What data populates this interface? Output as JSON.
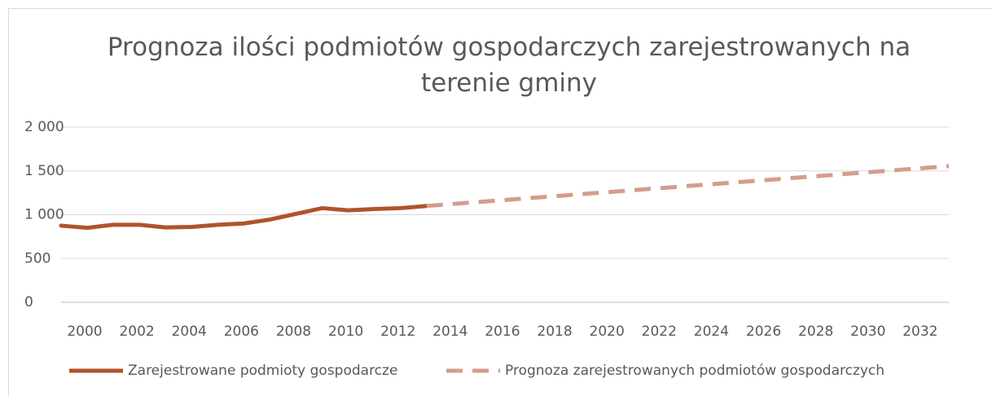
{
  "chart_data": {
    "type": "line",
    "title": "Prognoza ilości podmiotów gospodarczych zarejestrowanych na terenie gminy",
    "xlim": [
      2000,
      2034
    ],
    "xticks": [
      2000,
      2002,
      2004,
      2006,
      2008,
      2010,
      2012,
      2014,
      2016,
      2018,
      2020,
      2022,
      2024,
      2026,
      2028,
      2030,
      2032
    ],
    "ylim": [
      0,
      2000
    ],
    "yticks": [
      0,
      500,
      {
        "value": 1000,
        "label": "1 000"
      },
      {
        "value": 1500,
        "label": "1 500"
      },
      {
        "value": 2000,
        "label": "2 000"
      }
    ],
    "grid": true,
    "legend": "bottom",
    "series": [
      {
        "name": "Zarejestrowane podmioty gospodarcze",
        "color": "#b0532b",
        "dashed": false,
        "x": [
          2000,
          2001,
          2002,
          2003,
          2004,
          2005,
          2006,
          2007,
          2008,
          2009,
          2010,
          2011,
          2012,
          2013,
          2014
        ],
        "values": [
          875,
          850,
          885,
          885,
          855,
          860,
          885,
          900,
          945,
          1010,
          1075,
          1050,
          1065,
          1075,
          1100
        ]
      },
      {
        "name": "Prognoza zarejestrowanych podmiotów gospodarczych",
        "color": "#d59c8c",
        "dashed": true,
        "x": [
          2014,
          2034
        ],
        "values": [
          1100,
          1555
        ]
      }
    ]
  }
}
